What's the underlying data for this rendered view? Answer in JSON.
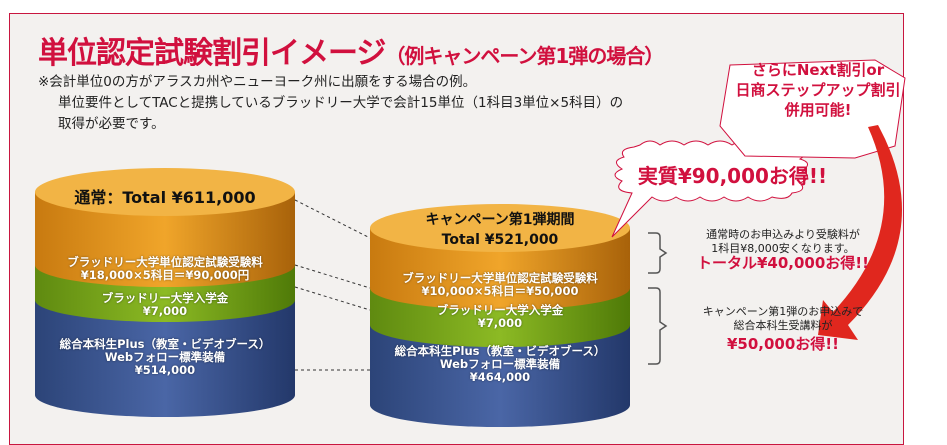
{
  "title": {
    "main": "単位認定試験割引イメージ",
    "sub": "（例キャンペーン第1弾の場合）"
  },
  "notes": [
    "※会計単位0の方がアラスカ州やニューヨーク州に出願をする場合の例。",
    "単位要件としてTACと提携しているブラッドリー大学で会計15単位（1科目3単位×5科目）の",
    "取得が必要です。"
  ],
  "left_cylinder": {
    "header": "通常：Total ¥611,000",
    "exam": [
      "ブラッドリー大学単位認定試験受験料",
      "¥18,000×5科目＝¥90,000円"
    ],
    "admission": [
      "ブラッドリー大学入学金",
      "¥7,000"
    ],
    "course": [
      "総合本科生Plus（教室・ビデオブース）",
      "Webフォロー標準装備",
      "¥514,000"
    ]
  },
  "right_cylinder": {
    "header": [
      "キャンペーン第1弾期間",
      "Total ¥521,000"
    ],
    "exam": [
      "ブラッドリー大学単位認定試験受験料",
      "¥10,000×5科目＝¥50,000"
    ],
    "admission": [
      "ブラッドリー大学入学金",
      "¥7,000"
    ],
    "course": [
      "総合本科生Plus（教室・ビデオブース）",
      "Webフォロー標準装備",
      "¥464,000"
    ]
  },
  "burst": "実質¥90,000お得!!",
  "callout": [
    "さらにNext割引or",
    "日商ステップアップ割引",
    "併用可能!"
  ],
  "side1": {
    "lines": [
      "通常時のお申込みより受験料が",
      "1科目¥8,000安くなります。"
    ],
    "highlight": "トータル¥40,000お得!!"
  },
  "side2": {
    "lines": [
      "キャンペーン第1弾のお申込みで",
      "総合本科生受講料が"
    ],
    "highlight": "¥50,000お得!!"
  },
  "colors": {
    "accent": "#d1103e",
    "orange": "#e2921c",
    "green": "#7aa61c",
    "blue": "#3a5592",
    "frame_bg": "#f3f1ef"
  }
}
